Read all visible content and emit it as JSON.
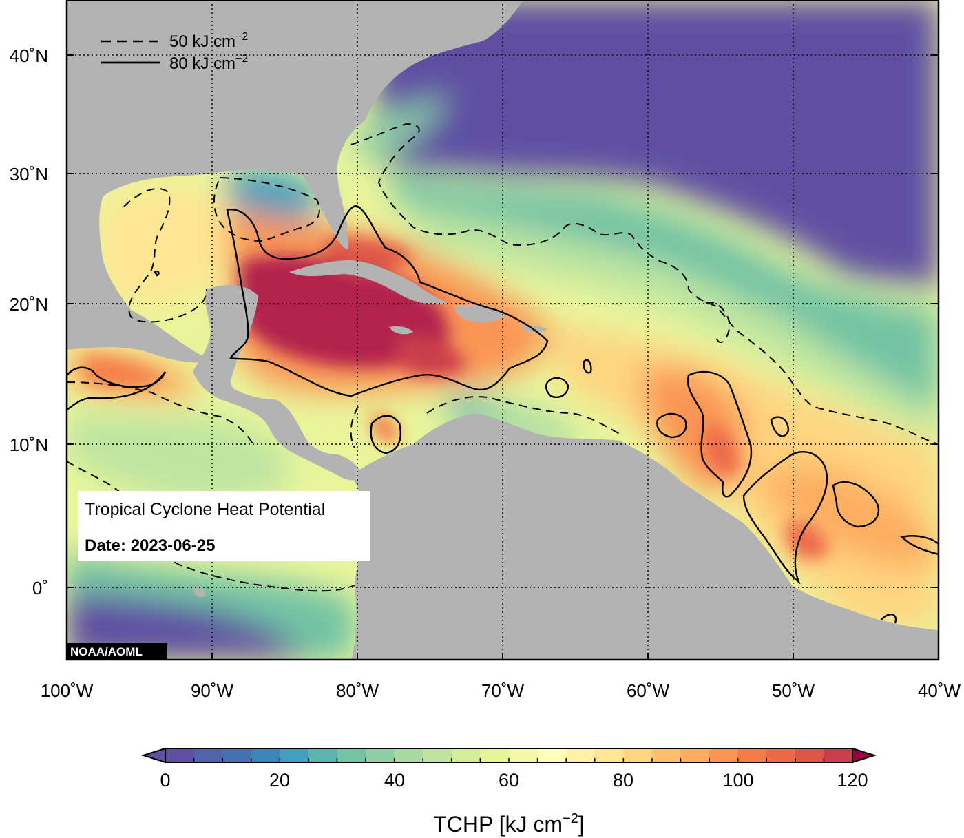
{
  "legend": {
    "dashed_label": "50 kJ cm",
    "solid_label": "80 kJ cm",
    "exponent": "−2"
  },
  "title": {
    "main": "Tropical Cyclone Heat Potential",
    "date_label": "Date:",
    "date_value": "2023-06-25"
  },
  "credit": "NOAA/AOML",
  "axes": {
    "lon_ticks": [
      "100˚W",
      "90˚W",
      "80˚W",
      "70˚W",
      "60˚W",
      "50˚W",
      "40˚W"
    ],
    "lat_ticks": [
      "40˚N",
      "30˚N",
      "20˚N",
      "10˚N",
      "0˚"
    ]
  },
  "colorbar": {
    "ticks": [
      "0",
      "20",
      "40",
      "60",
      "80",
      "100",
      "120"
    ],
    "title": "TCHP [kJ cm",
    "title_exponent": "−2",
    "title_close": "]",
    "min": 0,
    "max": 120,
    "step": 5,
    "colors": [
      "#5e4fa2",
      "#4f62ab",
      "#4471b2",
      "#3a86b8",
      "#449ebf",
      "#5ab4ad",
      "#73c3a4",
      "#8fcfa5",
      "#a8dba3",
      "#bee5a0",
      "#d3ed9b",
      "#e6f598",
      "#f3f9a6",
      "#fefebd",
      "#fff0a8",
      "#fee593",
      "#fed481",
      "#fdbf6f",
      "#fdad60",
      "#fa9555",
      "#f57d4a",
      "#ec6a48",
      "#de5646",
      "#cc3e4c",
      "#b2234e"
    ]
  }
}
